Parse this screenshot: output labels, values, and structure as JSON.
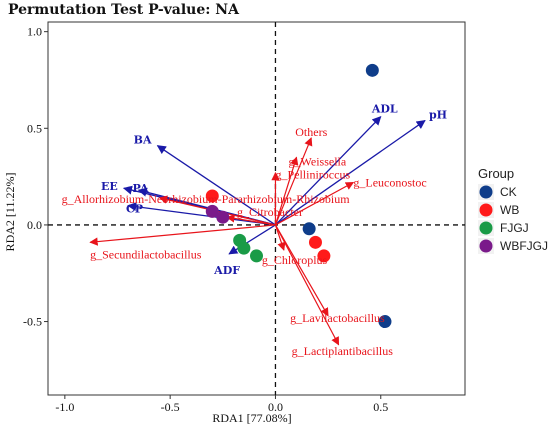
{
  "chart_data": {
    "type": "scatter",
    "title": "Permutation Test P-value: NA",
    "xlabel": "RDA1 [77.08%]",
    "ylabel": "RDA2 [11.22%]",
    "xlim": [
      -1.08,
      0.9
    ],
    "ylim": [
      -0.88,
      1.05
    ],
    "xticks": [
      "-1.0",
      "-0.5",
      "0.0",
      "0.5"
    ],
    "xtick_values": [
      -1.0,
      -0.5,
      0.0,
      0.5
    ],
    "yticks": [
      "1.0",
      "0.5",
      "0.0",
      "-0.5"
    ],
    "ytick_values": [
      1.0,
      0.5,
      0.0,
      -0.5
    ],
    "legend": {
      "title": "Group",
      "position": "right"
    },
    "groups": [
      {
        "name": "CK",
        "color": "#0f3d8a",
        "points": [
          [
            0.46,
            0.8
          ],
          [
            0.16,
            -0.02
          ],
          [
            0.52,
            -0.5
          ]
        ]
      },
      {
        "name": "WB",
        "color": "#ff1a1a",
        "points": [
          [
            -0.3,
            0.15
          ],
          [
            0.19,
            -0.09
          ],
          [
            0.23,
            -0.16
          ]
        ]
      },
      {
        "name": "FJGJ",
        "color": "#1a9b47",
        "points": [
          [
            -0.17,
            -0.08
          ],
          [
            -0.15,
            -0.12
          ],
          [
            -0.09,
            -0.16
          ]
        ]
      },
      {
        "name": "WBFJGJ",
        "color": "#7a1a8a",
        "points": [
          [
            -0.3,
            0.07
          ],
          [
            -0.25,
            0.04
          ]
        ]
      }
    ],
    "environmental_arrows": [
      {
        "label": "pH",
        "x": 0.71,
        "y": 0.54,
        "color": "#1a1aa8"
      },
      {
        "label": "ADL",
        "x": 0.5,
        "y": 0.56,
        "color": "#1a1aa8"
      },
      {
        "label": "BA",
        "x": -0.56,
        "y": 0.41,
        "color": "#1a1aa8"
      },
      {
        "label": "EE",
        "x": -0.72,
        "y": 0.19,
        "color": "#1a1aa8"
      },
      {
        "label": "PA",
        "x": -0.65,
        "y": 0.18,
        "color": "#1a1aa8"
      },
      {
        "label": "CP",
        "x": -0.7,
        "y": 0.1,
        "color": "#1a1aa8"
      },
      {
        "label": "ADF",
        "x": -0.22,
        "y": -0.15,
        "color": "#1a1aa8"
      }
    ],
    "taxa_arrows": [
      {
        "label": "Others",
        "x": 0.17,
        "y": 0.45,
        "color": "#e8141b"
      },
      {
        "label": "g_Weissella",
        "x": 0.1,
        "y": 0.35,
        "color": "#e8141b"
      },
      {
        "label": "g_Pelliniroccus",
        "x": 0.0,
        "y": 0.27,
        "color": "#e8141b"
      },
      {
        "label": "g_Leuconostoc",
        "x": 0.37,
        "y": 0.22,
        "color": "#e8141b"
      },
      {
        "label": "g_Allorhizobium-Neorhizobium-Pararhizobium-Rhizobium",
        "x": -0.55,
        "y": 0.14,
        "color": "#e8141b"
      },
      {
        "label": "g_Citrobacter",
        "x": -0.23,
        "y": 0.04,
        "color": "#e8141b"
      },
      {
        "label": "g_Secundilactobacillus",
        "x": -0.88,
        "y": -0.09,
        "color": "#e8141b"
      },
      {
        "label": "g_Chloroplus",
        "x": 0.04,
        "y": -0.13,
        "color": "#e8141b"
      },
      {
        "label": "g_Lavilactobacillus",
        "x": 0.25,
        "y": -0.47,
        "color": "#e8141b"
      },
      {
        "label": "g_Lactiplantibacillus",
        "x": 0.3,
        "y": -0.62,
        "color": "#e8141b"
      }
    ]
  }
}
